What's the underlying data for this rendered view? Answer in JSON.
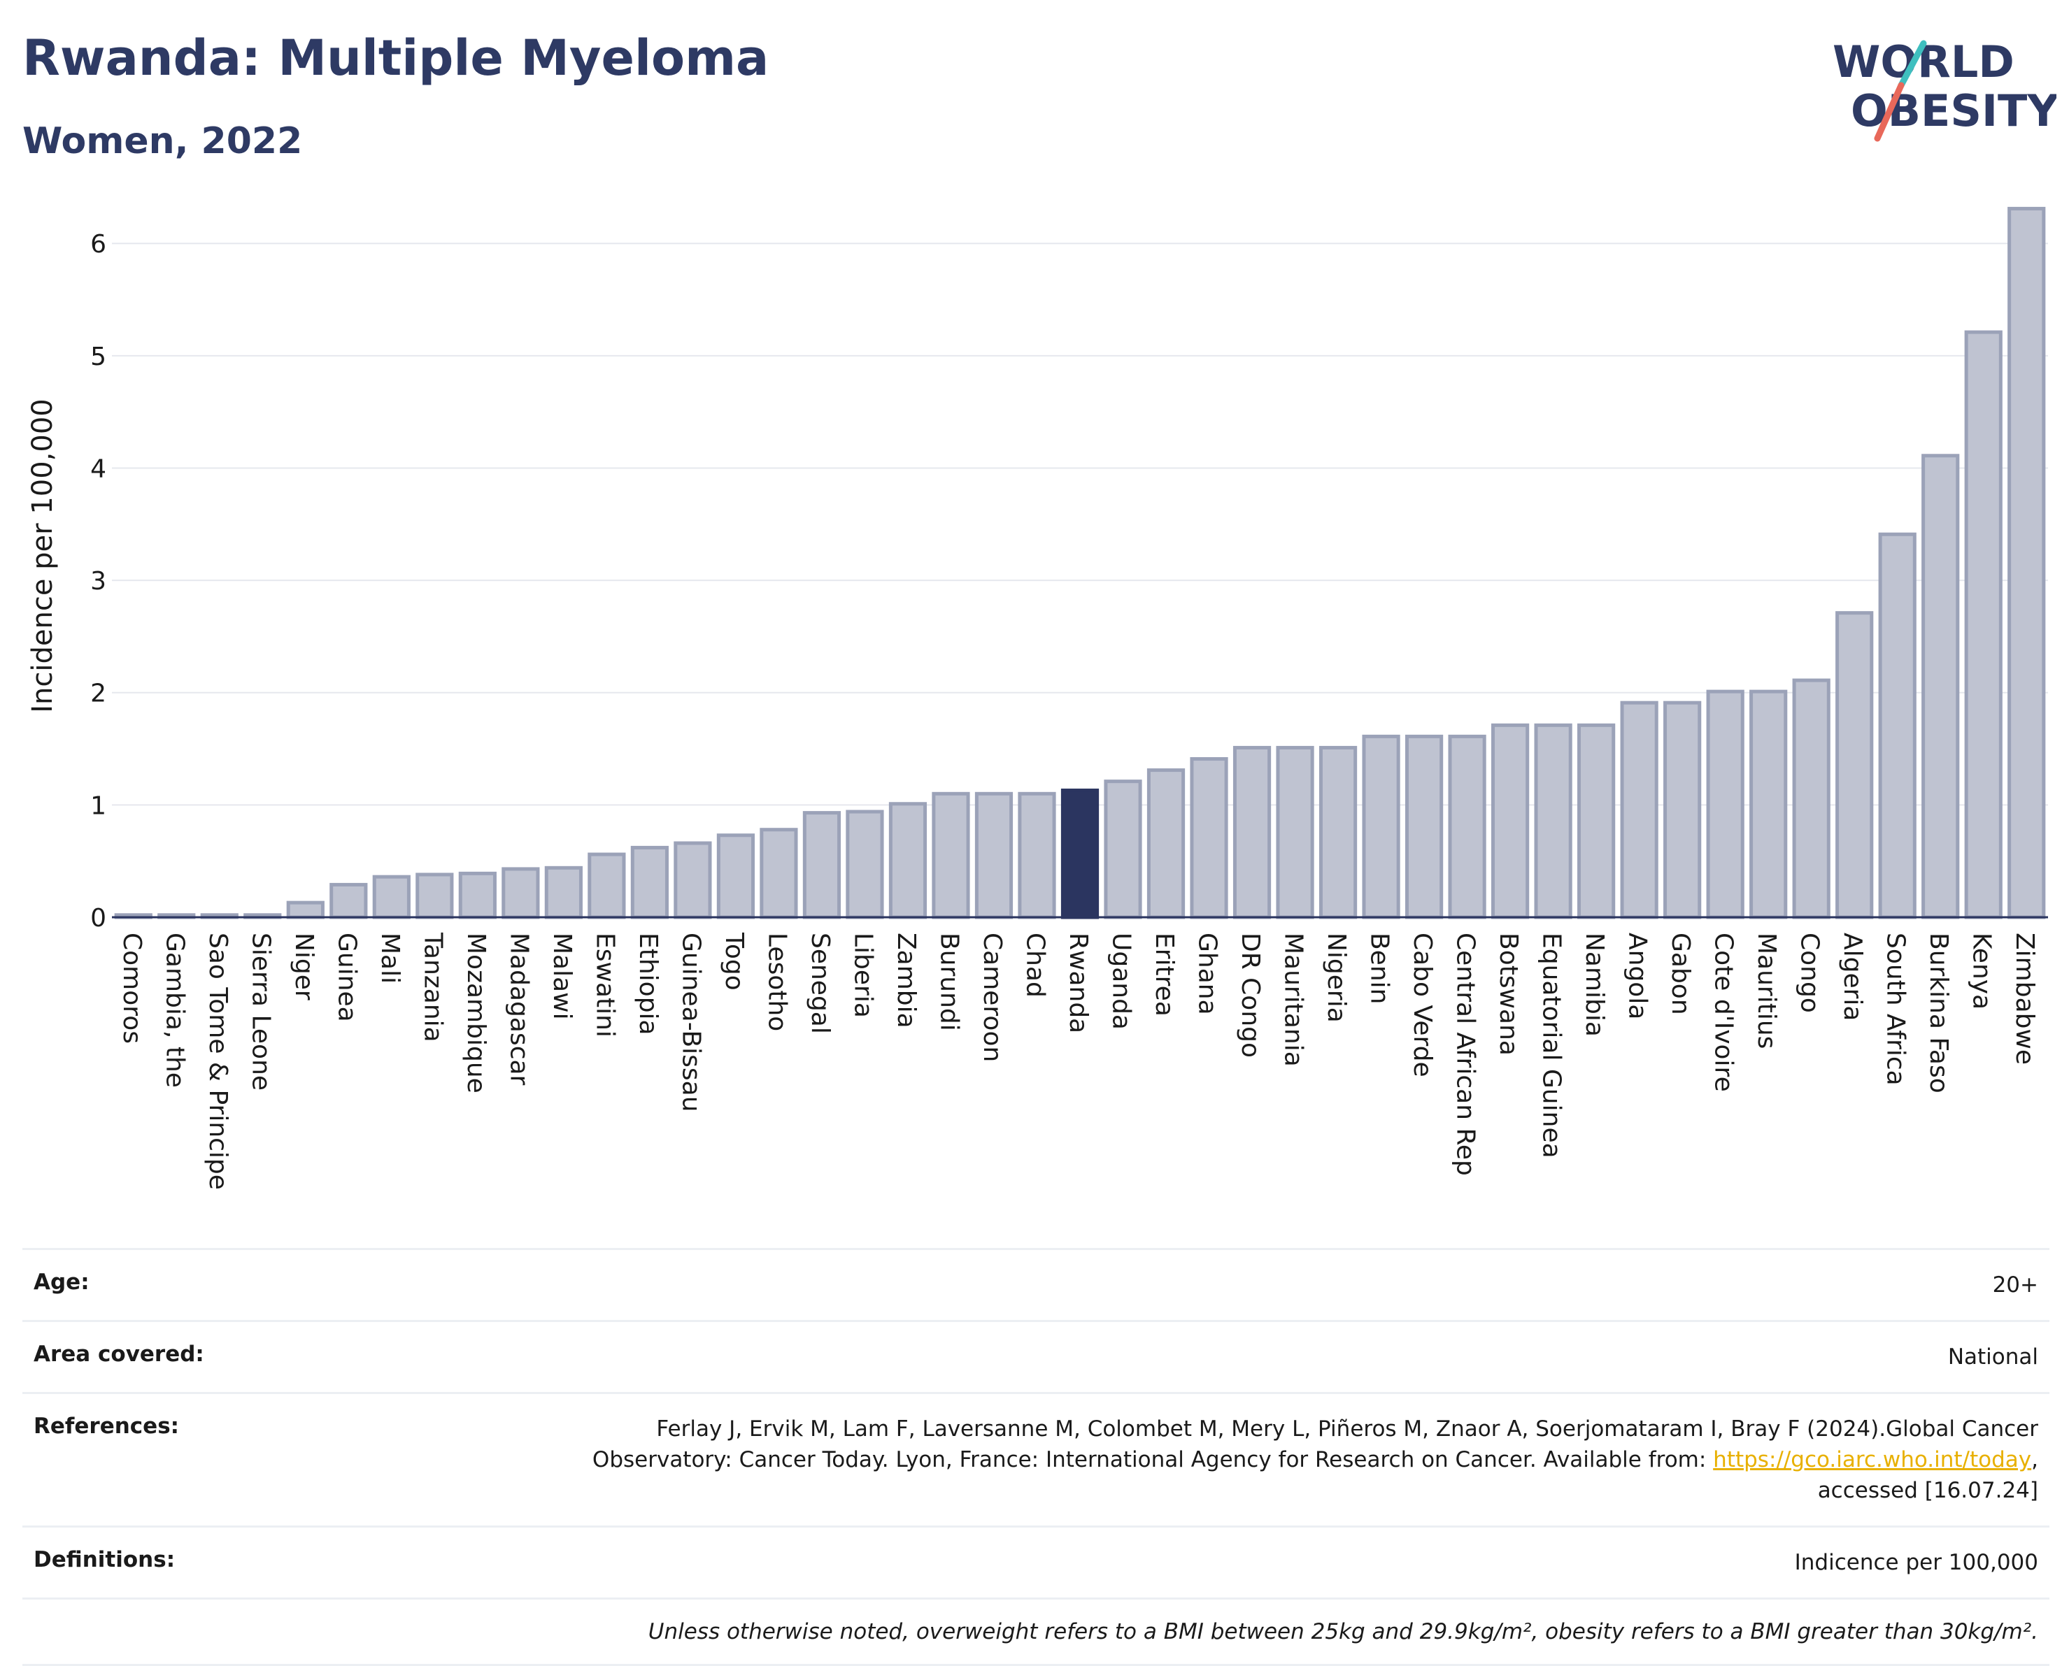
{
  "header": {
    "title": "Rwanda: Multiple Myeloma",
    "subtitle": "Women, 2022"
  },
  "logo": {
    "line1": "WORLD",
    "line2": "OBESITY",
    "slash_colors": [
      "#3fbfbf",
      "#e8685a"
    ],
    "text_color": "#2e3a64"
  },
  "chart_data": {
    "type": "bar",
    "ylabel": "Incidence per 100,000",
    "xlabel": "",
    "ylim": [
      0,
      6.3
    ],
    "yticks": [
      0,
      1,
      2,
      3,
      4,
      5,
      6
    ],
    "grid": true,
    "highlight": "Rwanda",
    "colors": {
      "bar": "#bfc3d1",
      "bar_border": "#9ba2b8",
      "highlight": "#2b3560"
    },
    "categories": [
      "Comoros",
      "Gambia, the",
      "Sao Tome & Principe",
      "Sierra Leone",
      "Niger",
      "Guinea",
      "Mali",
      "Tanzania",
      "Mozambique",
      "Madagascar",
      "Malawi",
      "Eswatini",
      "Ethiopia",
      "Guinea-Bissau",
      "Togo",
      "Lesotho",
      "Senegal",
      "Liberia",
      "Zambia",
      "Burundi",
      "Cameroon",
      "Chad",
      "Rwanda",
      "Uganda",
      "Eritrea",
      "Ghana",
      "DR Congo",
      "Mauritania",
      "Nigeria",
      "Benin",
      "Cabo Verde",
      "Central African Rep",
      "Botswana",
      "Equatorial Guinea",
      "Namibia",
      "Angola",
      "Gabon",
      "Cote d'Ivoire",
      "Mauritius",
      "Congo",
      "Algeria",
      "South Africa",
      "Burkina Faso",
      "Kenya",
      "Zimbabwe"
    ],
    "values": [
      0.02,
      0.02,
      0.02,
      0.02,
      0.13,
      0.29,
      0.36,
      0.38,
      0.39,
      0.43,
      0.44,
      0.56,
      0.62,
      0.66,
      0.73,
      0.78,
      0.93,
      0.94,
      1.01,
      1.1,
      1.1,
      1.1,
      1.13,
      1.21,
      1.31,
      1.41,
      1.51,
      1.51,
      1.51,
      1.61,
      1.61,
      1.61,
      1.71,
      1.71,
      1.71,
      1.91,
      1.91,
      2.01,
      2.01,
      2.11,
      2.71,
      3.41,
      4.11,
      5.21,
      6.31
    ]
  },
  "meta": {
    "age_label": "Age:",
    "age_value": "20+",
    "area_label": "Area covered:",
    "area_value": "National",
    "references_label": "References:",
    "references_text_1": "Ferlay J, Ervik M, Lam F, Laversanne M, Colombet M, Mery L, Piñeros M, Znaor A, Soerjomataram I, Bray F (2024).Global Cancer",
    "references_text_2": "Observatory: Cancer Today. Lyon, France: International Agency for Research on Cancer. Available from: ",
    "references_link": "https://gco.iarc.who.int/today",
    "references_text_3": ",",
    "references_text_4": "accessed [16.07.24]",
    "definitions_label": "Definitions:",
    "definitions_value": "Indicence per 100,000",
    "note": "Unless otherwise noted, overweight refers to a BMI between 25kg and 29.9kg/m², obesity refers to a BMI greater than 30kg/m²."
  }
}
